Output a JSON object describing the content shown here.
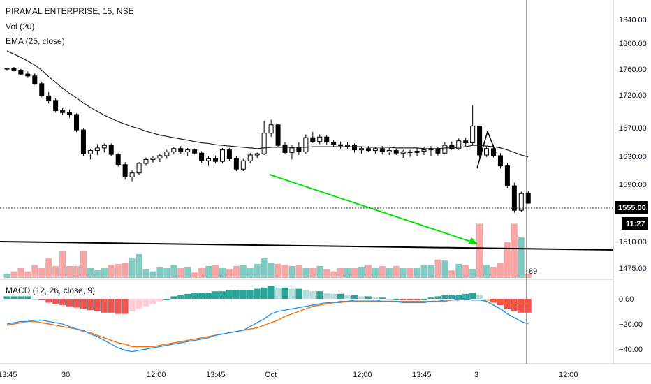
{
  "symbol": {
    "title": "PIRAMAL ENTERPRISE, 15, NSE",
    "vol_label": "Vol (20)",
    "ema_label": "EMA (25, close)"
  },
  "macd": {
    "label": "MACD (12, 26, close, 9)"
  },
  "price_axis": {
    "ticks": [
      "1840.00",
      "1800.00",
      "1760.00",
      "1720.00",
      "1670.00",
      "1630.00",
      "1590.00",
      "1555.00",
      "1510.00",
      "1475.00"
    ],
    "last_price": "1555.00",
    "countdown": "11:27"
  },
  "macd_axis": {
    "ticks": [
      "0.00",
      "−20.00",
      "−40.00"
    ]
  },
  "time_axis": {
    "ticks": [
      "13:45",
      "30",
      "12:00",
      "13:45",
      "Oct",
      "12:00",
      "13:45",
      "3",
      "12:00"
    ]
  },
  "volume_readout": "89",
  "colors": {
    "up": "#ffffff",
    "down": "#000000",
    "vol_up": "#80cbc4",
    "vol_down": "#f7a5a5",
    "hist_pos": "#26a69a",
    "hist_neg": "#ef5350",
    "macd_line": "#2196f3",
    "signal_line": "#ff6d00",
    "arrow": "#00e600",
    "trendline": "#000000"
  },
  "chart_data": {
    "type": "candlestick",
    "title": "PIRAMAL ENTERPRISE, 15, NSE",
    "interval": "15",
    "y_range": [
      1460,
      1860
    ],
    "candles": [
      [
        1764,
        1766,
        1762,
        1765
      ],
      [
        1765,
        1767,
        1760,
        1762
      ],
      [
        1762,
        1764,
        1754,
        1756
      ],
      [
        1756,
        1760,
        1750,
        1753
      ],
      [
        1753,
        1757,
        1739,
        1741
      ],
      [
        1741,
        1744,
        1720,
        1722
      ],
      [
        1722,
        1728,
        1710,
        1715
      ],
      [
        1715,
        1718,
        1696,
        1699
      ],
      [
        1699,
        1703,
        1692,
        1696
      ],
      [
        1696,
        1701,
        1688,
        1693
      ],
      [
        1693,
        1695,
        1666,
        1669
      ],
      [
        1669,
        1671,
        1629,
        1632
      ],
      [
        1632,
        1640,
        1623,
        1637
      ],
      [
        1637,
        1647,
        1630,
        1641
      ],
      [
        1641,
        1648,
        1634,
        1645
      ],
      [
        1645,
        1648,
        1628,
        1631
      ],
      [
        1631,
        1633,
        1612,
        1615
      ],
      [
        1615,
        1619,
        1592,
        1596
      ],
      [
        1596,
        1606,
        1589,
        1602
      ],
      [
        1602,
        1619,
        1599,
        1617
      ],
      [
        1617,
        1626,
        1613,
        1623
      ],
      [
        1623,
        1628,
        1618,
        1625
      ],
      [
        1625,
        1632,
        1619,
        1629
      ],
      [
        1629,
        1638,
        1624,
        1635
      ],
      [
        1635,
        1642,
        1631,
        1640
      ],
      [
        1640,
        1644,
        1632,
        1635
      ],
      [
        1635,
        1641,
        1629,
        1638
      ],
      [
        1638,
        1640,
        1631,
        1633
      ],
      [
        1633,
        1636,
        1618,
        1621
      ],
      [
        1621,
        1628,
        1613,
        1624
      ],
      [
        1624,
        1629,
        1617,
        1620
      ],
      [
        1620,
        1641,
        1617,
        1638
      ],
      [
        1638,
        1641,
        1621,
        1624
      ],
      [
        1624,
        1628,
        1605,
        1608
      ],
      [
        1608,
        1624,
        1605,
        1621
      ],
      [
        1621,
        1633,
        1617,
        1630
      ],
      [
        1630,
        1634,
        1625,
        1632
      ],
      [
        1632,
        1683,
        1630,
        1664
      ],
      [
        1664,
        1685,
        1658,
        1677
      ],
      [
        1677,
        1679,
        1643,
        1645
      ],
      [
        1645,
        1650,
        1631,
        1634
      ],
      [
        1634,
        1645,
        1623,
        1641
      ],
      [
        1641,
        1650,
        1630,
        1635
      ],
      [
        1635,
        1662,
        1632,
        1657
      ],
      [
        1657,
        1666,
        1649,
        1651
      ],
      [
        1651,
        1662,
        1647,
        1658
      ],
      [
        1658,
        1661,
        1646,
        1650
      ],
      [
        1650,
        1654,
        1642,
        1646
      ],
      [
        1646,
        1651,
        1640,
        1645
      ],
      [
        1645,
        1650,
        1640,
        1645
      ],
      [
        1645,
        1648,
        1634,
        1638
      ],
      [
        1638,
        1642,
        1632,
        1640
      ],
      [
        1640,
        1644,
        1635,
        1637
      ],
      [
        1637,
        1642,
        1632,
        1640
      ],
      [
        1640,
        1644,
        1631,
        1635
      ],
      [
        1635,
        1641,
        1630,
        1637
      ],
      [
        1637,
        1640,
        1630,
        1633
      ],
      [
        1633,
        1638,
        1625,
        1635
      ],
      [
        1635,
        1638,
        1627,
        1634
      ],
      [
        1634,
        1641,
        1628,
        1636
      ],
      [
        1636,
        1642,
        1630,
        1638
      ],
      [
        1638,
        1644,
        1628,
        1640
      ],
      [
        1640,
        1643,
        1629,
        1633
      ],
      [
        1633,
        1650,
        1631,
        1645
      ],
      [
        1645,
        1651,
        1638,
        1640
      ],
      [
        1640,
        1656,
        1638,
        1652
      ],
      [
        1652,
        1657,
        1644,
        1649
      ],
      [
        1649,
        1707,
        1646,
        1675
      ],
      [
        1675,
        1676,
        1625,
        1630
      ],
      [
        1630,
        1644,
        1627,
        1640
      ],
      [
        1640,
        1646,
        1626,
        1629
      ],
      [
        1629,
        1633,
        1609,
        1613
      ],
      [
        1613,
        1618,
        1579,
        1582
      ],
      [
        1582,
        1587,
        1540,
        1544
      ],
      [
        1544,
        1573,
        1541,
        1570
      ],
      [
        1570,
        1574,
        1554,
        1555
      ]
    ],
    "volume": [
      4,
      6,
      9,
      6,
      12,
      9,
      18,
      11,
      25,
      11,
      11,
      25,
      9,
      7,
      9,
      12,
      13,
      14,
      18,
      22,
      8,
      6,
      10,
      9,
      12,
      9,
      10,
      5,
      9,
      11,
      12,
      9,
      8,
      11,
      12,
      9,
      13,
      18,
      14,
      13,
      12,
      11,
      12,
      9,
      9,
      11,
      8,
      6,
      9,
      9,
      9,
      10,
      12,
      9,
      11,
      9,
      11,
      9,
      9,
      9,
      12,
      12,
      17,
      16,
      7,
      13,
      12,
      8,
      50,
      12,
      10,
      14,
      33,
      50,
      38,
      4
    ],
    "ema": [
      1792,
      1787,
      1782,
      1776,
      1770,
      1762,
      1752,
      1743,
      1734,
      1726,
      1719,
      1711,
      1704,
      1698,
      1692,
      1687,
      1682,
      1678,
      1674,
      1671,
      1667,
      1664,
      1661,
      1659,
      1657,
      1655,
      1653,
      1651,
      1649,
      1648,
      1646,
      1645,
      1644,
      1643,
      1642,
      1641,
      1640,
      1641,
      1642,
      1642,
      1642,
      1642,
      1642,
      1642,
      1643,
      1643,
      1643,
      1643,
      1643,
      1643,
      1643,
      1643,
      1642,
      1642,
      1642,
      1642,
      1641,
      1641,
      1641,
      1641,
      1640,
      1640,
      1640,
      1641,
      1641,
      1642,
      1643,
      1645,
      1645,
      1644,
      1643,
      1641,
      1638,
      1634,
      1630,
      1627
    ],
    "macd_hist": [
      2,
      2,
      2,
      2,
      0,
      -1,
      -3,
      -4,
      -5,
      -6,
      -7,
      -8,
      -9,
      -10,
      -11,
      -11,
      -12,
      -12,
      -10,
      -8,
      -6,
      -4,
      -2,
      0,
      2,
      3,
      4,
      5,
      5,
      5,
      6,
      6,
      7,
      7,
      7,
      7,
      8,
      9,
      10,
      9,
      9,
      8,
      8,
      7,
      6,
      6,
      5,
      4,
      4,
      3,
      3,
      2,
      2,
      1,
      1,
      0,
      0,
      -1,
      -1,
      -1,
      0,
      1,
      2,
      3,
      3,
      3,
      4,
      5,
      3,
      0,
      -3,
      -5,
      -8,
      -10,
      -11,
      -11
    ],
    "macd_line": [
      -20,
      -19,
      -18,
      -18,
      -17,
      -17,
      -18,
      -19,
      -20,
      -22,
      -24,
      -25,
      -28,
      -30,
      -33,
      -36,
      -39,
      -41,
      -42,
      -41,
      -40,
      -39,
      -38,
      -37,
      -36,
      -35,
      -34,
      -33,
      -32,
      -31,
      -29,
      -28,
      -27,
      -26,
      -25,
      -22,
      -19,
      -16,
      -12,
      -10,
      -9,
      -8,
      -7,
      -6,
      -5,
      -4,
      -3,
      -3,
      -2,
      -2,
      -1,
      -1,
      -1,
      -1,
      -2,
      -2,
      -2,
      -3,
      -3,
      -3,
      -3,
      -2,
      -2,
      -1,
      -1,
      0,
      0,
      -1,
      -1,
      -2,
      -5,
      -8,
      -12,
      -15,
      -18,
      -20
    ],
    "signal_line": [
      -21,
      -20,
      -19,
      -18,
      -18,
      -19,
      -20,
      -21,
      -22,
      -23,
      -24,
      -26,
      -27,
      -29,
      -31,
      -33,
      -35,
      -36,
      -38,
      -38,
      -38,
      -38,
      -37,
      -36,
      -35,
      -34,
      -33,
      -32,
      -31,
      -30,
      -29,
      -28,
      -27,
      -26,
      -25,
      -24,
      -23,
      -21,
      -19,
      -17,
      -14,
      -12,
      -10,
      -8,
      -6,
      -5,
      -4,
      -3,
      -3,
      -2,
      -2,
      -2,
      -2,
      -2,
      -2,
      -2,
      -2,
      -2,
      -2,
      -2,
      -2,
      -2,
      -2,
      -2,
      -1,
      -1,
      0,
      -1,
      -1,
      -1,
      -1,
      -2,
      -3,
      -4,
      -4,
      -4
    ]
  }
}
